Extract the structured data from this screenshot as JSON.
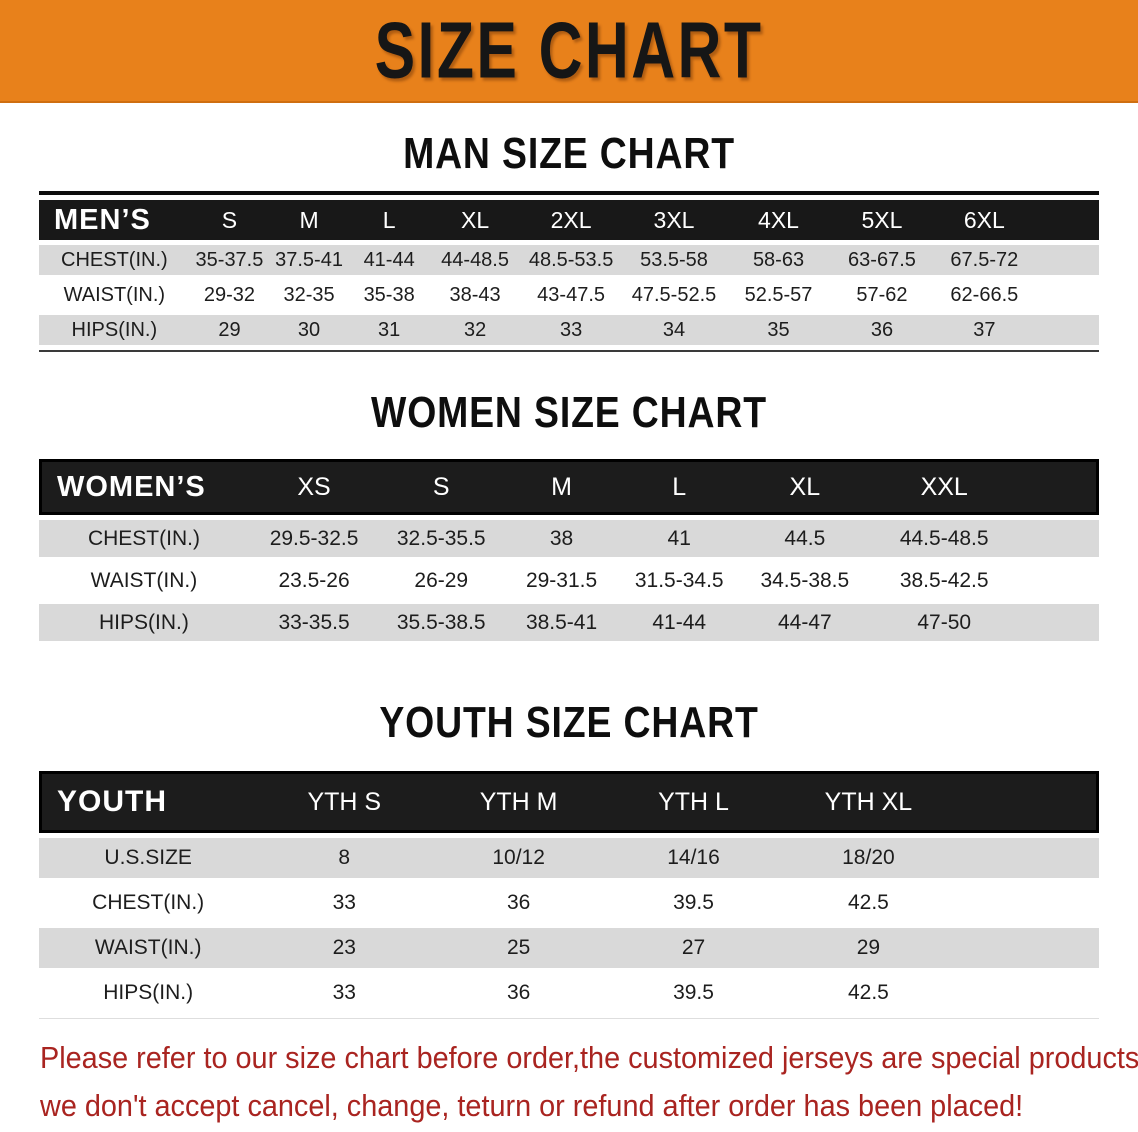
{
  "banner": {
    "title": "SIZE CHART"
  },
  "colors": {
    "banner_bg": "#e8811b",
    "table_header_bg": "#181818",
    "row_stripe": "#d9d9d9",
    "note_text": "#a92420"
  },
  "sections": [
    {
      "id": "men",
      "heading": "MAN SIZE CHART",
      "table": {
        "label": "MEN’S",
        "columns": [
          "S",
          "M",
          "L",
          "XL",
          "2XL",
          "3XL",
          "4XL",
          "5XL",
          "6XL"
        ],
        "rows": [
          {
            "label": "CHEST(IN.)",
            "values": [
              "35-37.5",
              "37.5-41",
              "41-44",
              "44-48.5",
              "48.5-53.5",
              "53.5-58",
              "58-63",
              "63-67.5",
              "67.5-72"
            ]
          },
          {
            "label": "WAIST(IN.)",
            "values": [
              "29-32",
              "32-35",
              "35-38",
              "38-43",
              "43-47.5",
              "47.5-52.5",
              "52.5-57",
              "57-62",
              "62-66.5"
            ]
          },
          {
            "label": "HIPS(IN.)",
            "values": [
              "29",
              "30",
              "31",
              "32",
              "33",
              "34",
              "35",
              "36",
              "37"
            ]
          }
        ]
      }
    },
    {
      "id": "women",
      "heading": "WOMEN SIZE CHART",
      "table": {
        "label": "WOMEN’S",
        "columns": [
          "XS",
          "S",
          "M",
          "L",
          "XL",
          "XXL"
        ],
        "rows": [
          {
            "label": "CHEST(IN.)",
            "values": [
              "29.5-32.5",
              "32.5-35.5",
              "38",
              "41",
              "44.5",
              "44.5-48.5"
            ]
          },
          {
            "label": "WAIST(IN.)",
            "values": [
              "23.5-26",
              "26-29",
              "29-31.5",
              "31.5-34.5",
              "34.5-38.5",
              "38.5-42.5"
            ]
          },
          {
            "label": "HIPS(IN.)",
            "values": [
              "33-35.5",
              "35.5-38.5",
              "38.5-41",
              "41-44",
              "44-47",
              "47-50"
            ]
          }
        ]
      }
    },
    {
      "id": "youth",
      "heading": "YOUTH SIZE CHART",
      "table": {
        "label": "YOUTH",
        "columns": [
          "YTH S",
          "YTH M",
          "YTH L",
          "YTH XL"
        ],
        "rows": [
          {
            "label": "U.S.SIZE",
            "values": [
              "8",
              "10/12",
              "14/16",
              "18/20"
            ]
          },
          {
            "label": "CHEST(IN.)",
            "values": [
              "33",
              "36",
              "39.5",
              "42.5"
            ]
          },
          {
            "label": "WAIST(IN.)",
            "values": [
              "23",
              "25",
              "27",
              "29"
            ]
          },
          {
            "label": "HIPS(IN.)",
            "values": [
              "33",
              "36",
              "39.5",
              "42.5"
            ]
          }
        ]
      }
    }
  ],
  "footer": {
    "line1": "Please refer to our size chart before order,the customized jerseys are special products,",
    "line2": "we don't accept cancel, change, teturn or refund after order has been placed!"
  }
}
